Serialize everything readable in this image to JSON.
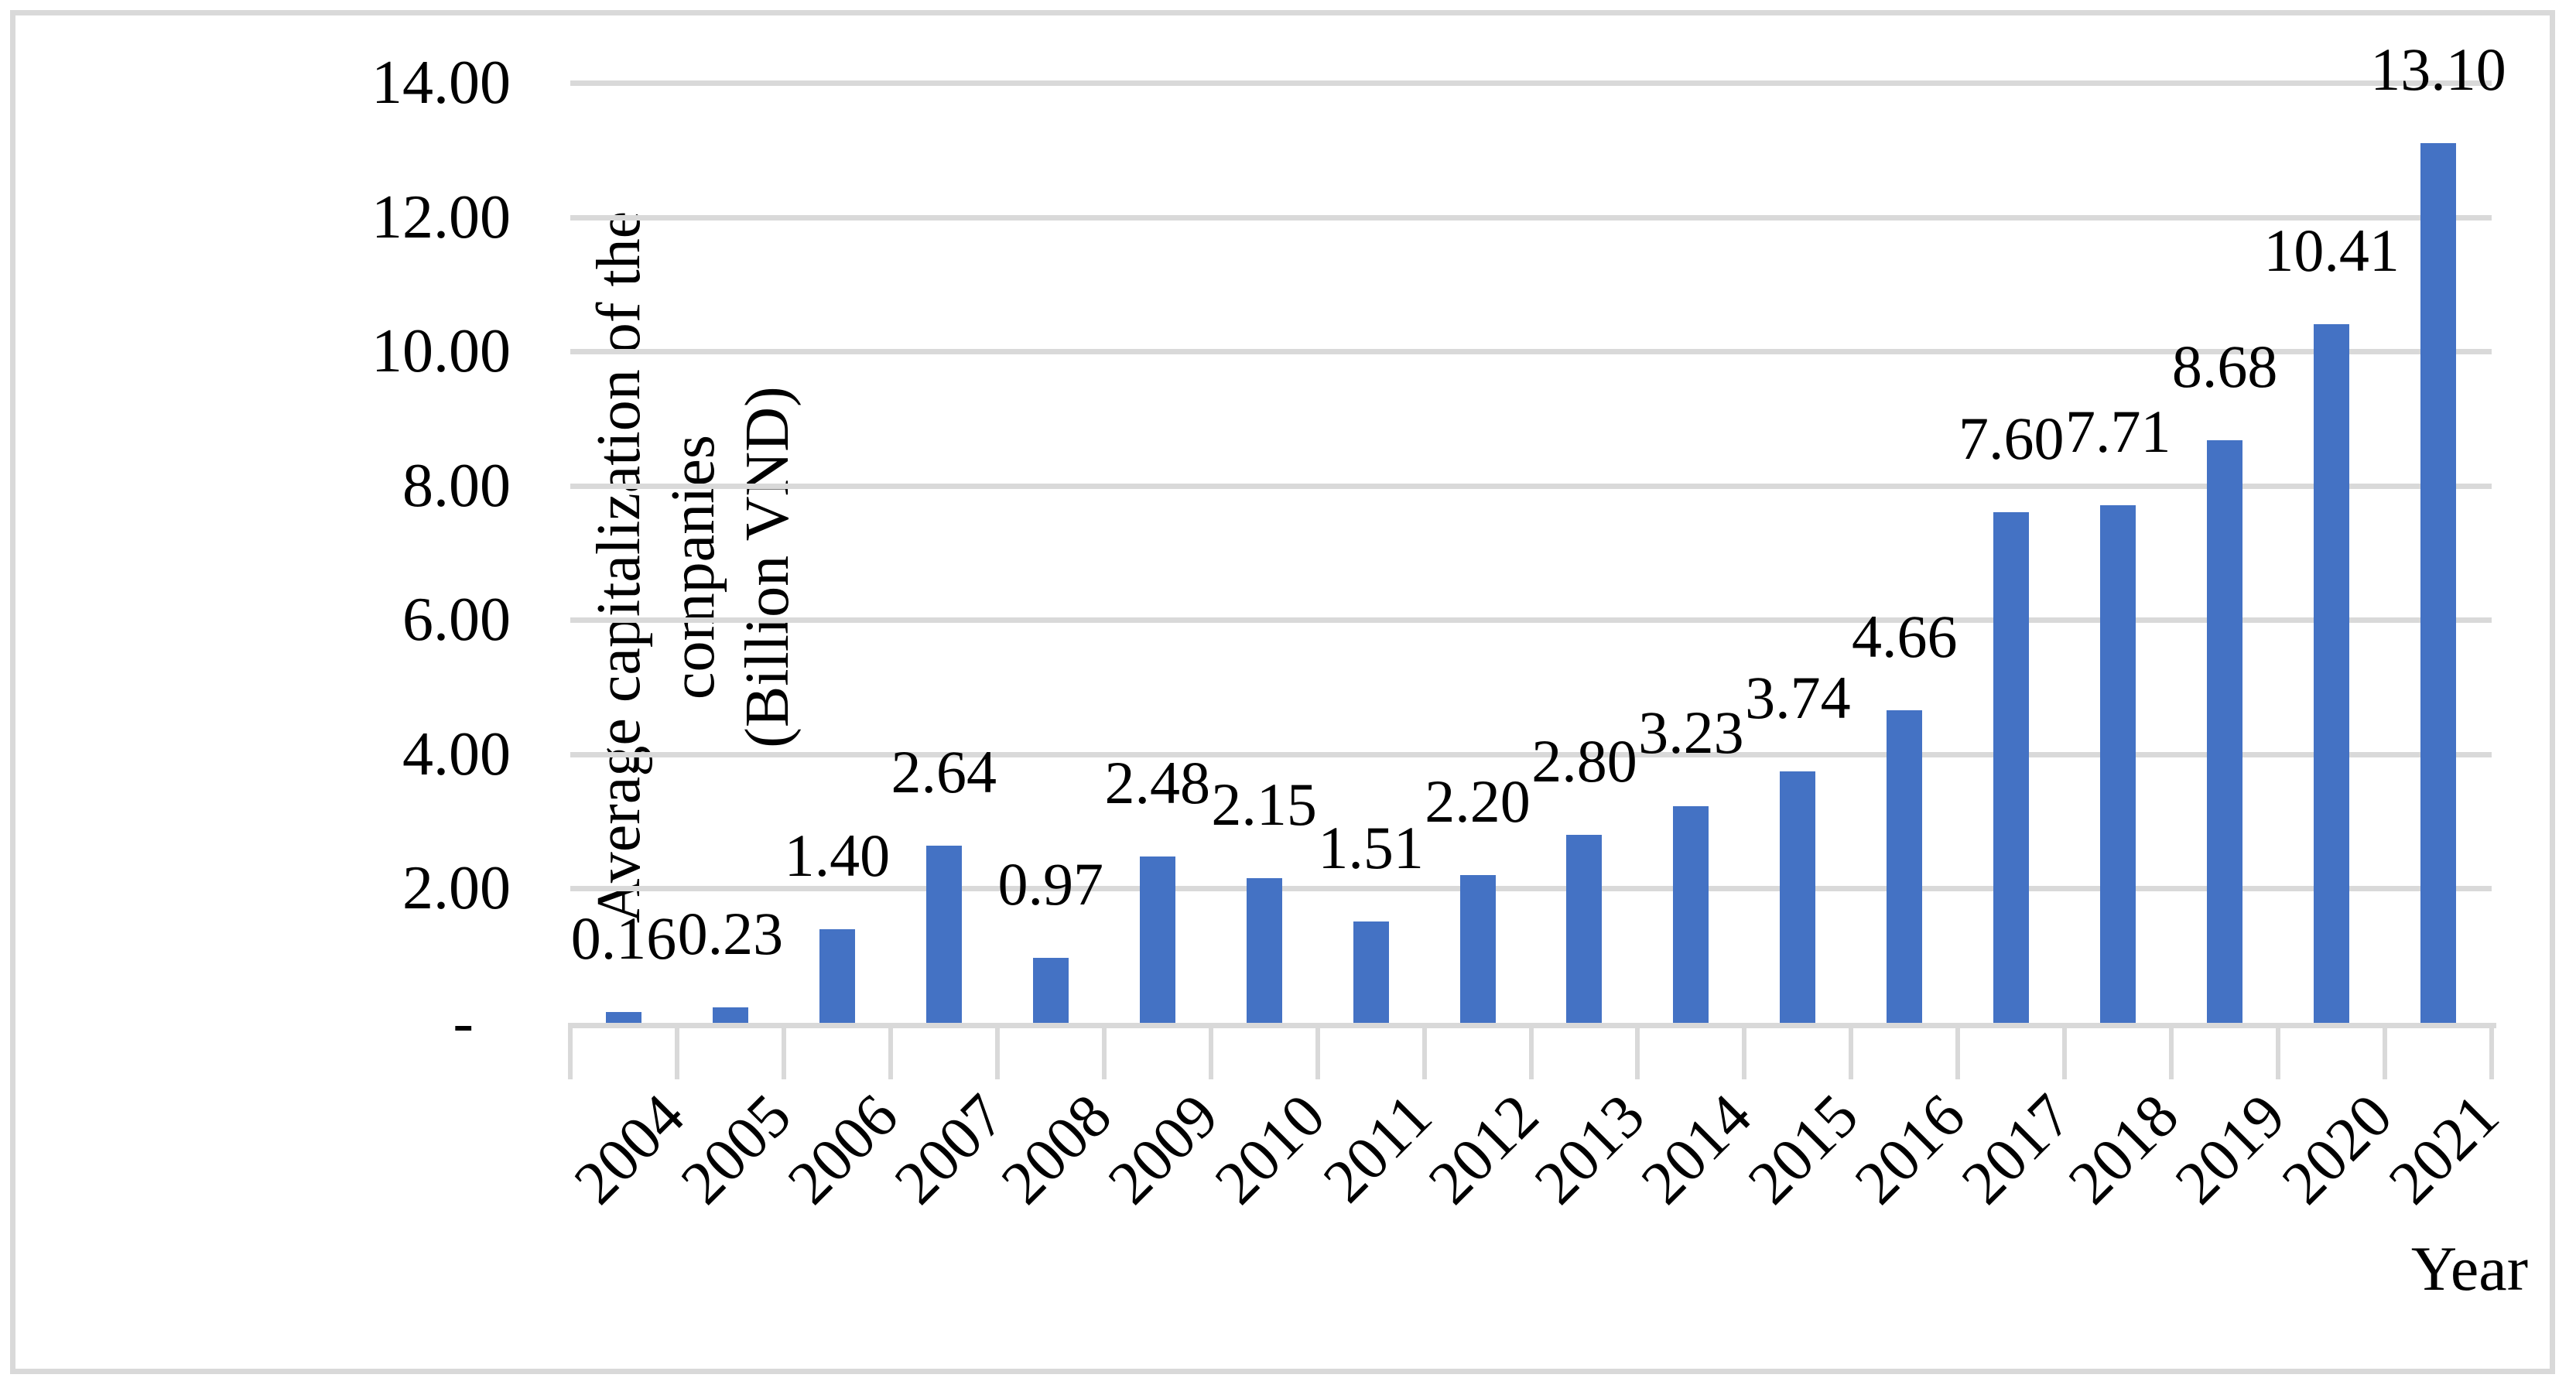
{
  "figure": {
    "background_color": "#FFFFFF",
    "frame_border_color": "#D9D9D9"
  },
  "chart_data": {
    "type": "bar",
    "title": "",
    "categories": [
      "2004",
      "2005",
      "2006",
      "2007",
      "2008",
      "2009",
      "2010",
      "2011",
      "2012",
      "2013",
      "2014",
      "2015",
      "2016",
      "2017",
      "2018",
      "2019",
      "2020",
      "2021"
    ],
    "values": [
      0.16,
      0.23,
      1.4,
      2.64,
      0.97,
      2.48,
      2.15,
      1.51,
      2.2,
      2.8,
      3.23,
      3.74,
      4.66,
      7.6,
      7.71,
      8.68,
      10.41,
      13.1
    ],
    "data_labels": [
      "0.16",
      "0.23",
      "1.40",
      "2.64",
      "0.97",
      "2.48",
      "2.15",
      "1.51",
      "2.20",
      "2.80",
      "3.23",
      "3.74",
      "4.66",
      "7.60",
      "7.71",
      "8.68",
      "10.41",
      "13.10"
    ],
    "xlabel": "Year",
    "ylabel": "Average capitalization of the companies (Billion VND)",
    "ylabel_lines": [
      "Average capitalization of the",
      "companies",
      "(Billion VND)"
    ],
    "ylim": [
      0,
      14
    ],
    "y_ticks": [
      {
        "value": 0,
        "label": "-"
      },
      {
        "value": 2,
        "label": "2.00"
      },
      {
        "value": 4,
        "label": "4.00"
      },
      {
        "value": 6,
        "label": "6.00"
      },
      {
        "value": 8,
        "label": "8.00"
      },
      {
        "value": 10,
        "label": "10.00"
      },
      {
        "value": 12,
        "label": "12.00"
      },
      {
        "value": 14,
        "label": "14.00"
      }
    ],
    "grid": true,
    "legend_position": "none",
    "bar_color": "#4472C4",
    "gridline_color": "#D9D9D9",
    "axis_line_color": "#D9D9D9",
    "tick_mark_color": "#D9D9D9",
    "label_text_color": "#000000"
  }
}
